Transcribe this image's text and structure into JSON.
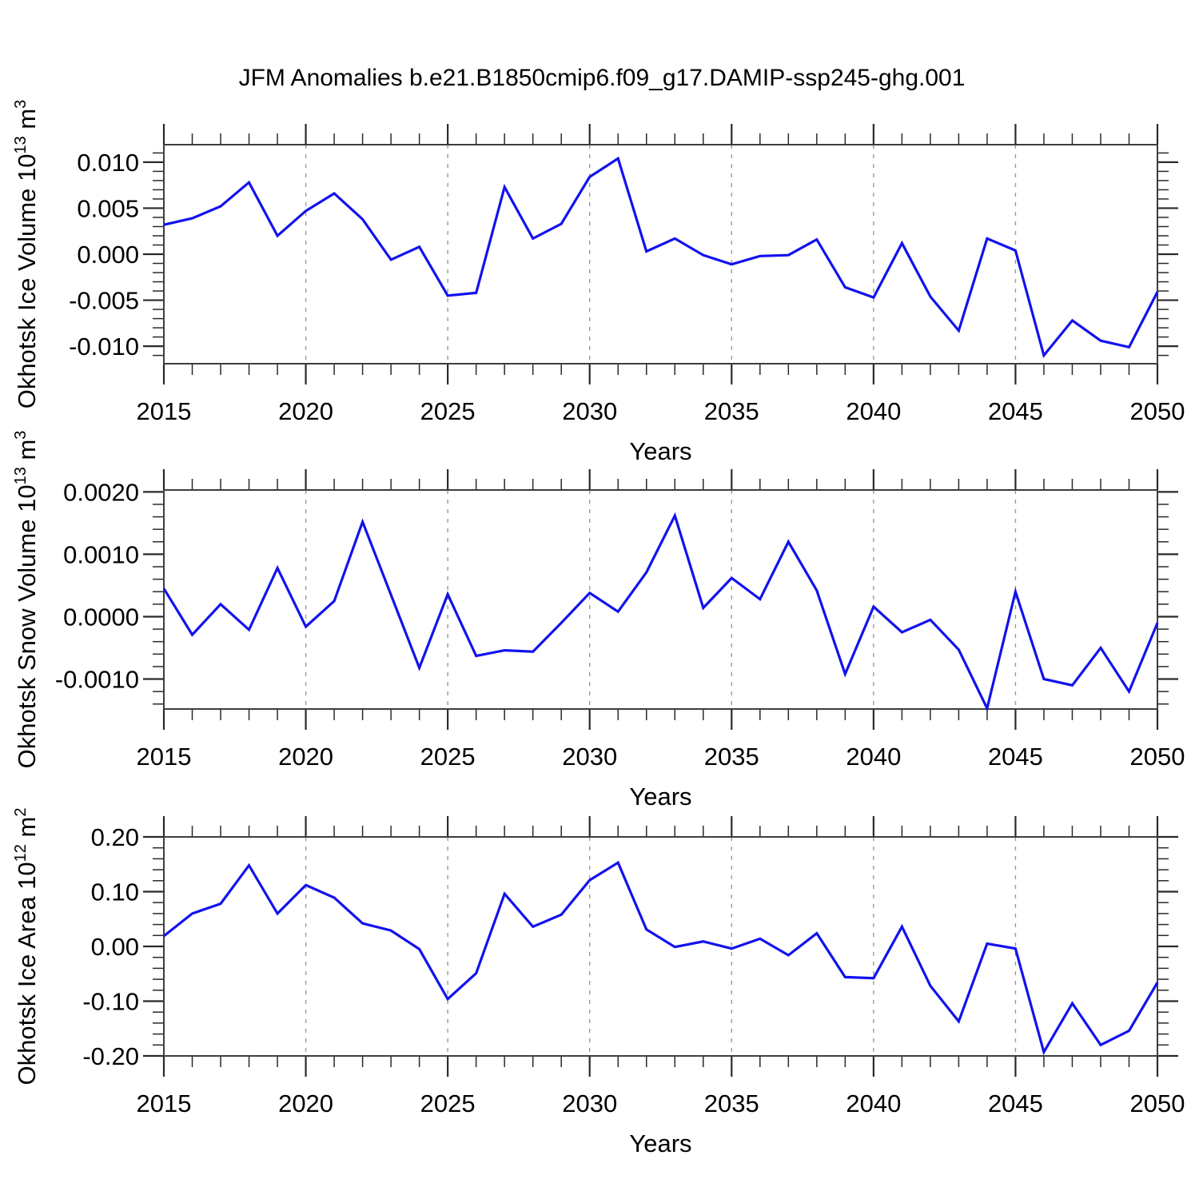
{
  "title": "JFM Anomalies b.e21.B1850cmip6.f09_g17.DAMIP-ssp245-ghg.001",
  "x_axis": {
    "label": "Years",
    "start": 2015,
    "end": 2050,
    "major_tick_years": [
      2015,
      2020,
      2025,
      2030,
      2035,
      2040,
      2045,
      2050
    ],
    "minor_tick_step_years": 1,
    "gridline_years": [
      2020,
      2025,
      2030,
      2035,
      2040,
      2045
    ]
  },
  "style": {
    "line_color": "#1212ee",
    "axis_color": "#3d3d3d",
    "tick_color": "#2a2a2a",
    "grid_color": "#9a9a9a",
    "text_color": "#000000",
    "background": "#ffffff"
  },
  "years": [
    2015,
    2016,
    2017,
    2018,
    2019,
    2020,
    2021,
    2022,
    2023,
    2024,
    2025,
    2026,
    2027,
    2028,
    2029,
    2030,
    2031,
    2032,
    2033,
    2034,
    2035,
    2036,
    2037,
    2038,
    2039,
    2040,
    2041,
    2042,
    2043,
    2044,
    2045,
    2046,
    2047,
    2048,
    2049,
    2050
  ],
  "chart_data": [
    {
      "id": "ice-volume",
      "type": "line",
      "ylabel_plain": "Okhotsk Ice Volume 10^13 m^3",
      "ylabel_parts": [
        {
          "t": "Okhotsk Ice Volume 10"
        },
        {
          "t": "13",
          "sup": true
        },
        {
          "t": " m"
        },
        {
          "t": "3",
          "sup": true
        }
      ],
      "xlabel": "Years",
      "ylim": [
        -0.0119,
        0.0119
      ],
      "ytick_labels": [
        {
          "value": 0.01,
          "label": "0.010"
        },
        {
          "value": 0.005,
          "label": "0.005"
        },
        {
          "value": 0.0,
          "label": "0.000"
        },
        {
          "value": -0.005,
          "label": "-0.005"
        },
        {
          "value": -0.01,
          "label": "-0.010"
        }
      ],
      "y_minor_step": 0.001,
      "values": [
        0.0032,
        0.0039,
        0.0052,
        0.0078,
        0.002,
        0.0047,
        0.0066,
        0.0038,
        -0.0006,
        0.0008,
        -0.0045,
        -0.0042,
        0.0073,
        0.0017,
        0.0033,
        0.0084,
        0.0104,
        0.0003,
        0.0017,
        -0.0001,
        -0.0011,
        -0.0002,
        -0.0001,
        0.0016,
        -0.0036,
        -0.0047,
        0.0012,
        -0.0046,
        -0.0083,
        0.0017,
        0.0004,
        -0.011,
        -0.0072,
        -0.0094,
        -0.0101,
        -0.0041
      ]
    },
    {
      "id": "snow-volume",
      "type": "line",
      "ylabel_plain": "Okhotsk Snow Volume 10^13 m^3",
      "ylabel_parts": [
        {
          "t": "Okhotsk Snow Volume 10"
        },
        {
          "t": "13",
          "sup": true
        },
        {
          "t": " m"
        },
        {
          "t": "3",
          "sup": true
        }
      ],
      "xlabel": "Years",
      "ylim": [
        -0.00148,
        0.00203
      ],
      "ytick_labels": [
        {
          "value": 0.002,
          "label": "0.0020"
        },
        {
          "value": 0.001,
          "label": "0.0010"
        },
        {
          "value": 0.0,
          "label": "0.0000"
        },
        {
          "value": -0.001,
          "label": "-0.0010"
        }
      ],
      "y_minor_step": 0.0002,
      "values": [
        0.00045,
        -0.00029,
        0.0002,
        -0.00021,
        0.00078,
        -0.00016,
        0.00025,
        0.00152,
        0.00035,
        -0.00082,
        0.00036,
        -0.00063,
        -0.00054,
        -0.00056,
        -0.0001,
        0.00038,
        8e-05,
        0.00071,
        0.00162,
        0.00014,
        0.00062,
        0.00028,
        0.0012,
        0.00042,
        -0.00092,
        0.00016,
        -0.00025,
        -5e-05,
        -0.00053,
        -0.00147,
        0.0004,
        -0.001,
        -0.0011,
        -0.0005,
        -0.0012,
        -0.0001
      ]
    },
    {
      "id": "ice-area",
      "type": "line",
      "ylabel_plain": "Okhotsk Ice Area 10^12 m^2",
      "ylabel_parts": [
        {
          "t": "Okhotsk Ice Area 10"
        },
        {
          "t": "12",
          "sup": true
        },
        {
          "t": " m"
        },
        {
          "t": "2",
          "sup": true
        }
      ],
      "xlabel": "Years",
      "ylim": [
        -0.2,
        0.2
      ],
      "ytick_labels": [
        {
          "value": 0.2,
          "label": "0.20"
        },
        {
          "value": 0.1,
          "label": "0.10"
        },
        {
          "value": 0.0,
          "label": "0.00"
        },
        {
          "value": -0.1,
          "label": "-0.10"
        },
        {
          "value": -0.2,
          "label": "-0.20"
        }
      ],
      "y_minor_step": 0.02,
      "values": [
        0.019,
        0.06,
        0.078,
        0.148,
        0.06,
        0.112,
        0.089,
        0.042,
        0.029,
        -0.005,
        -0.096,
        -0.049,
        0.096,
        0.036,
        0.058,
        0.121,
        0.153,
        0.031,
        -0.001,
        0.009,
        -0.004,
        0.014,
        -0.016,
        0.024,
        -0.056,
        -0.058,
        0.036,
        -0.072,
        -0.137,
        0.005,
        -0.004,
        -0.193,
        -0.104,
        -0.18,
        -0.154,
        -0.066
      ]
    }
  ]
}
